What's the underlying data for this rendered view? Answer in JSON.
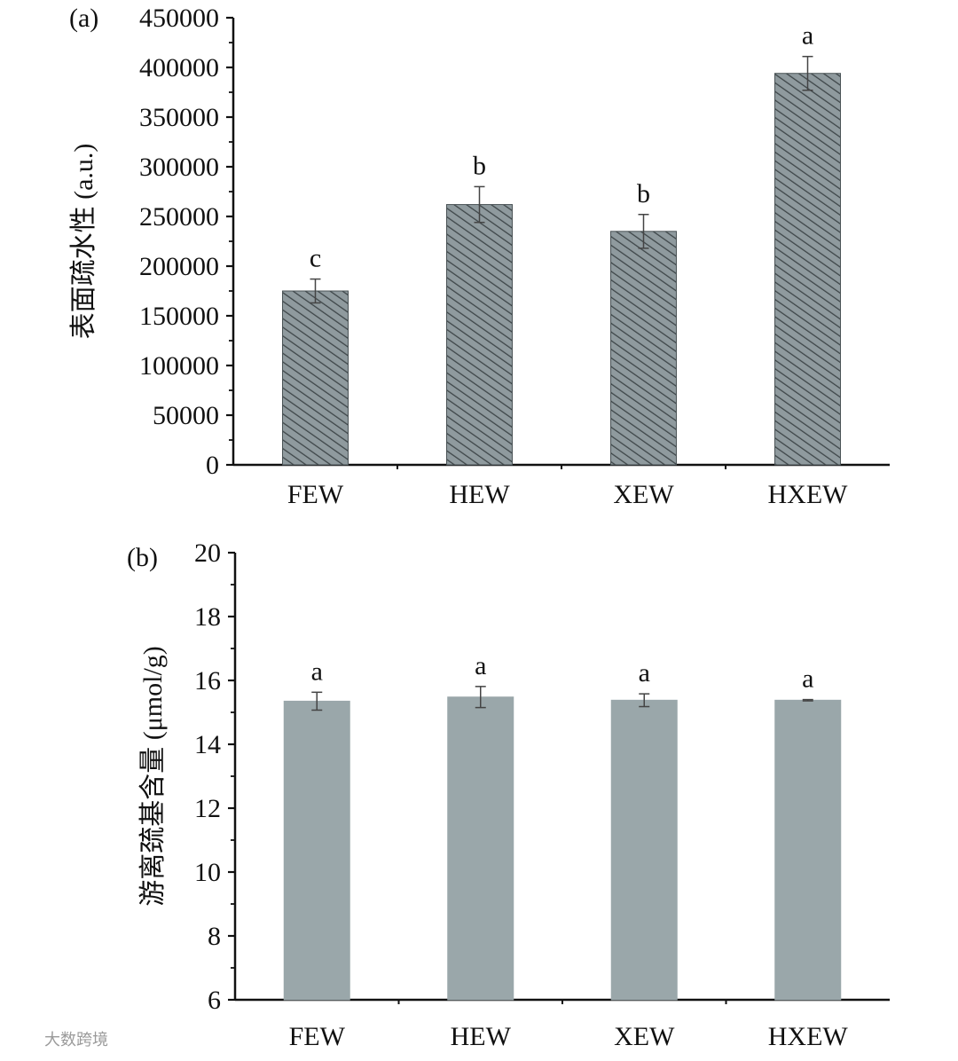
{
  "watermark": "大数跨境",
  "chart_data": [
    {
      "type": "bar",
      "panel_label": "(a)",
      "categories": [
        "FEW",
        "HEW",
        "XEW",
        "HXEW"
      ],
      "values": [
        175000,
        262000,
        235000,
        394000
      ],
      "errors": [
        12000,
        18000,
        17000,
        17000
      ],
      "significance": [
        "c",
        "b",
        "b",
        "a"
      ],
      "ylabel": "表面疏水性 (a.u.)",
      "ylim": [
        0,
        450000
      ],
      "yticks": [
        0,
        50000,
        100000,
        150000,
        200000,
        250000,
        300000,
        350000,
        400000,
        450000
      ],
      "bar_color": "#8f9a9e",
      "hatch": true
    },
    {
      "type": "bar",
      "panel_label": "(b)",
      "categories": [
        "FEW",
        "HEW",
        "XEW",
        "HXEW"
      ],
      "values": [
        15.35,
        15.48,
        15.38,
        15.38
      ],
      "errors": [
        0.28,
        0.33,
        0.2,
        0.02
      ],
      "significance": [
        "a",
        "a",
        "a",
        "a"
      ],
      "ylabel": "游离巯基含量 (μmol/g)",
      "ylim": [
        6,
        20
      ],
      "yticks": [
        6,
        8,
        10,
        12,
        14,
        16,
        18,
        20
      ],
      "bar_color": "#9aa7aa",
      "hatch": false
    }
  ]
}
